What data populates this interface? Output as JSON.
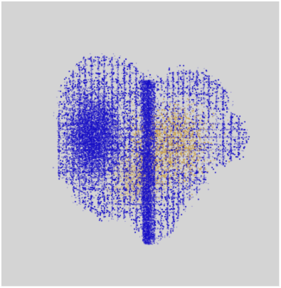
{
  "colors": {
    "background": "#d4d4d4",
    "point_primary": "#1a12c8",
    "point_secondary": "#c8a050"
  },
  "visualization": {
    "kind": "3d-point-cloud",
    "series": [
      {
        "color": "#1a12c8",
        "visibility": "dominant"
      },
      {
        "color": "#c8a050",
        "visibility": "partially-occluded"
      }
    ]
  }
}
